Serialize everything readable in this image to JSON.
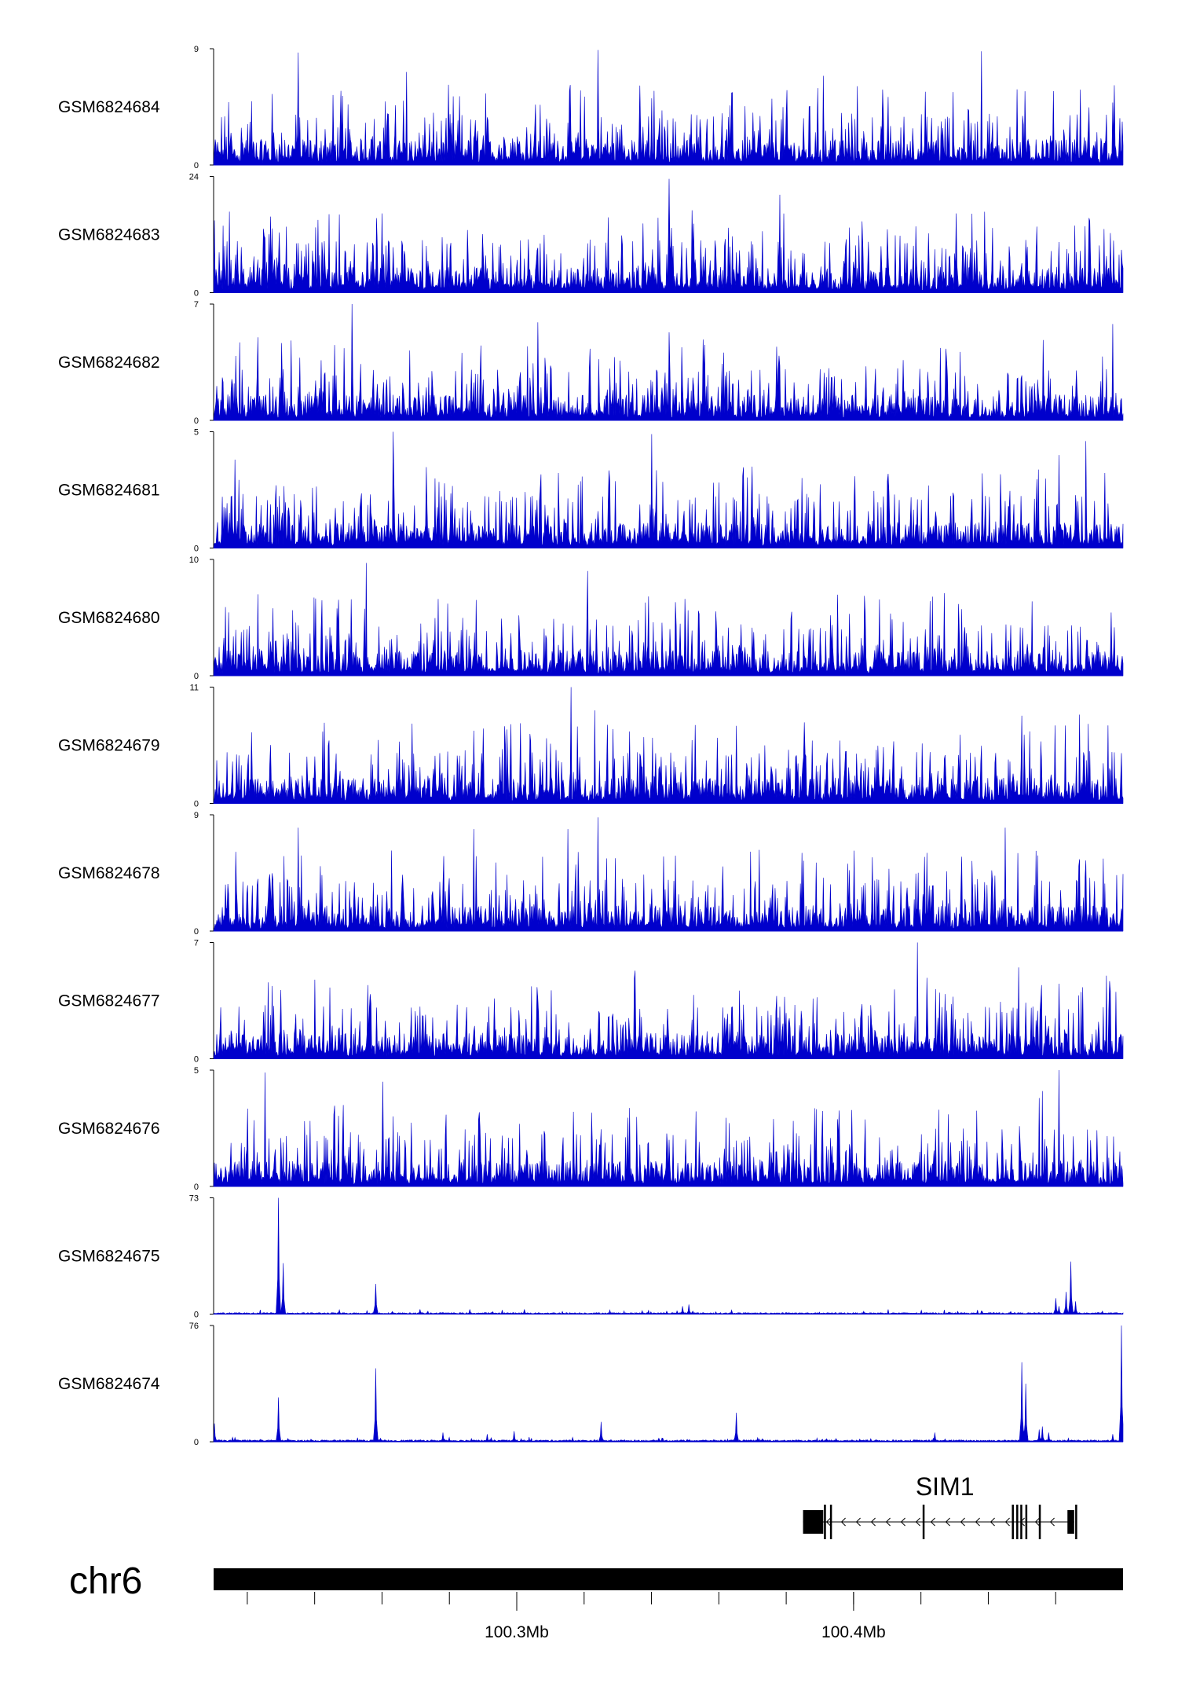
{
  "colors": {
    "signal": "#0000cc",
    "axis": "#000000",
    "gene": "#000000",
    "ideogram": "#000000"
  },
  "chart_data": {
    "type": "area",
    "title": "",
    "xlabel": "",
    "ylabel": "",
    "chromosome": "chr6",
    "x_unit": "Mb",
    "xlim": [
      100.21,
      100.48
    ],
    "x_tick_labels": [
      {
        "pos": 100.3,
        "label": "100.3Mb"
      },
      {
        "pos": 100.4,
        "label": "100.4Mb"
      }
    ],
    "x_minor_ticks": [
      100.22,
      100.24,
      100.26,
      100.28,
      100.3,
      100.32,
      100.34,
      100.36,
      100.38,
      100.4,
      100.42,
      100.44,
      100.46
    ],
    "tracks": [
      {
        "name": "GSM6824684",
        "ymax": 9,
        "ymin": 0,
        "pattern": "noise",
        "base": 0.18,
        "spikes": [
          [
            100.235,
            8.7
          ],
          [
            100.324,
            8.9
          ],
          [
            100.438,
            8.8
          ],
          [
            100.391,
            6.9
          ],
          [
            100.267,
            7.2
          ]
        ]
      },
      {
        "name": "GSM6824683",
        "ymax": 24,
        "ymin": 0,
        "pattern": "noise",
        "base": 0.22,
        "spikes": [
          [
            100.345,
            23.5
          ],
          [
            100.378,
            20.2
          ],
          [
            100.435,
            16.3
          ],
          [
            100.47,
            15.4
          ],
          [
            100.352,
            17.0
          ],
          [
            100.225,
            11.1
          ]
        ]
      },
      {
        "name": "GSM6824682",
        "ymax": 7,
        "ymin": 0,
        "pattern": "noise",
        "base": 0.22,
        "spikes": [
          [
            100.251,
            7.0
          ],
          [
            100.306,
            5.9
          ],
          [
            100.477,
            5.8
          ],
          [
            100.345,
            5.3
          ],
          [
            100.223,
            5.0
          ]
        ]
      },
      {
        "name": "GSM6824681",
        "ymax": 5,
        "ymin": 0,
        "pattern": "noise",
        "base": 0.24,
        "spikes": [
          [
            100.263,
            5.0
          ],
          [
            100.34,
            4.9
          ],
          [
            100.469,
            4.6
          ],
          [
            100.461,
            4.0
          ],
          [
            100.216,
            3.8
          ]
        ]
      },
      {
        "name": "GSM6824680",
        "ymax": 10,
        "ymin": 0,
        "pattern": "noise",
        "base": 0.2,
        "spikes": [
          [
            100.255,
            9.7
          ],
          [
            100.321,
            9.0
          ],
          [
            100.427,
            7.1
          ],
          [
            100.24,
            6.0
          ],
          [
            100.223,
            7.0
          ]
        ]
      },
      {
        "name": "GSM6824679",
        "ymax": 11,
        "ymin": 0,
        "pattern": "noise",
        "base": 0.2,
        "spikes": [
          [
            100.316,
            11.0
          ],
          [
            100.323,
            8.8
          ],
          [
            100.467,
            8.4
          ],
          [
            100.45,
            8.3
          ],
          [
            100.297,
            7.0
          ]
        ]
      },
      {
        "name": "GSM6824678",
        "ymax": 9,
        "ymin": 0,
        "pattern": "noise",
        "base": 0.24,
        "spikes": [
          [
            100.315,
            7.9
          ],
          [
            100.324,
            8.8
          ],
          [
            100.235,
            8.0
          ],
          [
            100.445,
            8.0
          ],
          [
            100.287,
            7.9
          ]
        ]
      },
      {
        "name": "GSM6824677",
        "ymax": 7,
        "ymin": 0,
        "pattern": "noise",
        "base": 0.24,
        "spikes": [
          [
            100.419,
            7.0
          ],
          [
            100.449,
            5.5
          ],
          [
            100.335,
            5.3
          ],
          [
            100.226,
            4.6
          ],
          [
            100.475,
            5.0
          ]
        ]
      },
      {
        "name": "GSM6824676",
        "ymax": 5,
        "ymin": 0,
        "pattern": "noise",
        "base": 0.24,
        "spikes": [
          [
            100.225,
            4.9
          ],
          [
            100.461,
            5.0
          ],
          [
            100.26,
            4.5
          ],
          [
            100.456,
            4.1
          ],
          [
            100.455,
            3.8
          ]
        ]
      },
      {
        "name": "GSM6824675",
        "ymax": 73,
        "ymin": 0,
        "pattern": "peaks",
        "base": 0.6,
        "spikes": [
          [
            100.229,
            73.0
          ],
          [
            100.2305,
            32.0
          ],
          [
            100.258,
            19.0
          ],
          [
            100.349,
            5.0
          ],
          [
            100.351,
            6.0
          ],
          [
            100.46,
            10.0
          ],
          [
            100.461,
            5.0
          ],
          [
            100.463,
            14.0
          ],
          [
            100.4645,
            33.0
          ],
          [
            100.466,
            8.0
          ],
          [
            100.271,
            3.0
          ],
          [
            100.286,
            3.0
          ],
          [
            100.302,
            3.0
          ]
        ]
      },
      {
        "name": "GSM6824674",
        "ymax": 76,
        "ymin": 0,
        "pattern": "peaks",
        "base": 0.8,
        "spikes": [
          [
            100.21,
            12.0
          ],
          [
            100.229,
            29.0
          ],
          [
            100.258,
            48.0
          ],
          [
            100.299,
            7.0
          ],
          [
            100.325,
            13.0
          ],
          [
            100.365,
            19.0
          ],
          [
            100.45,
            52.0
          ],
          [
            100.451,
            38.0
          ],
          [
            100.455,
            8.0
          ],
          [
            100.456,
            10.0
          ],
          [
            100.458,
            6.0
          ],
          [
            100.4795,
            76.0
          ],
          [
            100.291,
            5.0
          ],
          [
            100.278,
            6.0
          ],
          [
            100.424,
            6.0
          ],
          [
            100.477,
            5.0
          ]
        ]
      }
    ],
    "gene": {
      "name": "SIM1",
      "strand": "-",
      "start": 100.385,
      "end": 100.4655,
      "exons": [
        {
          "start": 100.385,
          "end": 100.391,
          "thick": true
        },
        {
          "start": 100.3912,
          "end": 100.3918,
          "thick": false
        },
        {
          "start": 100.393,
          "end": 100.3935,
          "thick": false
        },
        {
          "start": 100.4205,
          "end": 100.421,
          "thick": false
        },
        {
          "start": 100.447,
          "end": 100.4475,
          "thick": false
        },
        {
          "start": 100.4483,
          "end": 100.4487,
          "thick": false
        },
        {
          "start": 100.4495,
          "end": 100.45,
          "thick": false
        },
        {
          "start": 100.451,
          "end": 100.4515,
          "thick": false
        },
        {
          "start": 100.455,
          "end": 100.4555,
          "thick": false
        },
        {
          "start": 100.4635,
          "end": 100.4655,
          "thick": true
        },
        {
          "start": 100.4658,
          "end": 100.4662,
          "thick": false
        }
      ]
    }
  }
}
